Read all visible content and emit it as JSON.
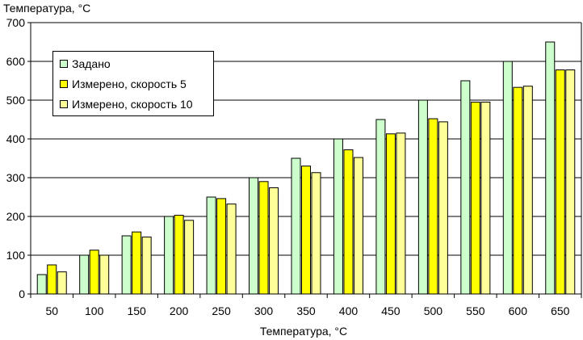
{
  "chart_data": {
    "type": "bar",
    "ylabel": "Температура, °C",
    "xlabel": "Температура, °C",
    "categories": [
      "50",
      "100",
      "150",
      "200",
      "250",
      "300",
      "350",
      "400",
      "450",
      "500",
      "550",
      "600",
      "650"
    ],
    "ylim": [
      0,
      700
    ],
    "yticks": [
      0,
      100,
      200,
      300,
      400,
      500,
      600,
      700
    ],
    "grid": true,
    "legend_position": "top-left",
    "series": [
      {
        "name": "Задано",
        "color": "#ccffcc",
        "values": [
          50,
          100,
          150,
          200,
          250,
          300,
          350,
          400,
          450,
          500,
          550,
          600,
          650
        ]
      },
      {
        "name": "Измерено, скорость 5",
        "color": "#ffff00",
        "values": [
          75,
          113,
          160,
          203,
          246,
          290,
          330,
          372,
          413,
          452,
          495,
          533,
          578
        ]
      },
      {
        "name": "Измерено, скорость 10",
        "color": "#ffff99",
        "values": [
          57,
          100,
          147,
          190,
          232,
          274,
          313,
          352,
          415,
          444,
          495,
          536,
          578
        ]
      }
    ]
  }
}
